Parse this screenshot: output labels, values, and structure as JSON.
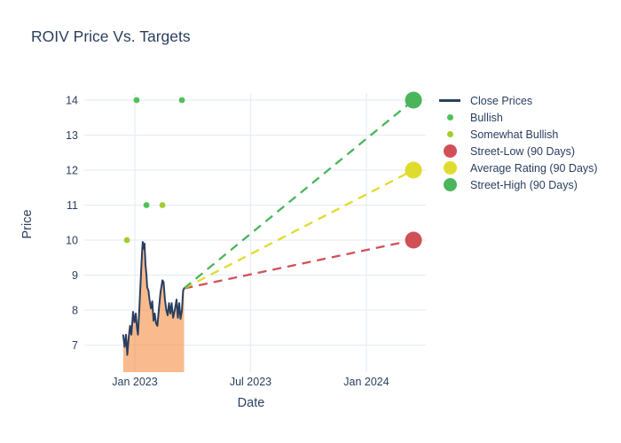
{
  "chart_data": {
    "type": "line",
    "title": "ROIV Price Vs. Targets",
    "xlabel": "Date",
    "ylabel": "Price",
    "x_unit": "months relative to Jan 2023",
    "x_ticks": [
      {
        "value": 0,
        "label": "Jan 2023"
      },
      {
        "value": 6,
        "label": "Jul 2023"
      },
      {
        "value": 12,
        "label": "Jan 2024"
      }
    ],
    "y_ticks": [
      7,
      8,
      9,
      10,
      11,
      12,
      13,
      14
    ],
    "xlim": [
      -2.6,
      15.3
    ],
    "ylim": [
      6.2,
      14.2
    ],
    "grid": true,
    "legend_position": "right",
    "series": [
      {
        "name": "Close Prices",
        "type": "line",
        "color": "#2a3f5f",
        "fill_color": "rgba(244,131,48,0.55)",
        "fill_to_bottom": true,
        "x": [
          -0.6,
          -0.53,
          -0.46,
          -0.39,
          -0.32,
          -0.25,
          -0.18,
          -0.09,
          -0.02,
          0.05,
          0.11,
          0.16,
          0.23,
          0.3,
          0.37,
          0.41,
          0.46,
          0.5,
          0.55,
          0.6,
          0.64,
          0.71,
          0.76,
          0.83,
          0.9,
          0.97,
          1.03,
          1.1,
          1.17,
          1.24,
          1.33,
          1.43,
          1.49,
          1.56,
          1.63,
          1.7,
          1.77,
          1.84,
          1.91,
          1.98,
          2.07,
          2.16,
          2.23,
          2.3,
          2.37,
          2.44,
          2.5,
          2.55
        ],
        "y": [
          7.28,
          6.95,
          7.3,
          6.72,
          7.2,
          7.55,
          7.3,
          7.95,
          7.65,
          7.9,
          7.5,
          7.3,
          8.0,
          8.8,
          9.6,
          9.95,
          9.75,
          9.9,
          9.3,
          9.0,
          8.65,
          8.55,
          8.3,
          8.05,
          8.25,
          7.7,
          7.9,
          7.62,
          7.55,
          8.0,
          8.5,
          8.85,
          8.8,
          8.3,
          8.0,
          7.85,
          8.2,
          7.9,
          8.2,
          7.78,
          8.0,
          8.3,
          7.78,
          8.2,
          7.75,
          8.0,
          8.55,
          8.62
        ]
      },
      {
        "name": "Bullish",
        "type": "scatter",
        "color": "#50c156",
        "x": [
          0.09,
          0.6,
          2.44
        ],
        "y": [
          14,
          11,
          14
        ]
      },
      {
        "name": "Somewhat Bullish",
        "type": "scatter",
        "color": "#a2cd30",
        "x": [
          -0.41,
          1.43
        ],
        "y": [
          10,
          11
        ]
      },
      {
        "name": "Street-Low (90 Days)",
        "type": "target",
        "color": "#d15058",
        "line_style": "dashed",
        "from": {
          "x": 2.55,
          "y": 8.62
        },
        "x": 14.44,
        "y": 10
      },
      {
        "name": "Average Rating (90 Days)",
        "type": "target",
        "color": "#dfdc2e",
        "line_style": "dashed",
        "from": {
          "x": 2.55,
          "y": 8.62
        },
        "x": 14.44,
        "y": 12
      },
      {
        "name": "Street-High (90 Days)",
        "type": "target",
        "color": "#4bb55c",
        "line_style": "dashed",
        "from": {
          "x": 2.55,
          "y": 8.62
        },
        "x": 14.44,
        "y": 14
      }
    ]
  },
  "legend": {
    "items": [
      {
        "label": "Close Prices",
        "symbol": "line",
        "color": "#2a3f5f"
      },
      {
        "label": "Bullish",
        "symbol": "dot-small",
        "color": "#50c156"
      },
      {
        "label": "Somewhat Bullish",
        "symbol": "dot-small",
        "color": "#a2cd30"
      },
      {
        "label": "Street-Low (90 Days)",
        "symbol": "dot-large",
        "color": "#d15058"
      },
      {
        "label": "Average Rating (90 Days)",
        "symbol": "dot-large",
        "color": "#dfdc2e"
      },
      {
        "label": "Street-High (90 Days)",
        "symbol": "dot-large",
        "color": "#4bb55c"
      }
    ]
  },
  "theme": {
    "grid_color": "#e7edf5",
    "text_color": "#2a3f5f",
    "background": "#ffffff"
  }
}
